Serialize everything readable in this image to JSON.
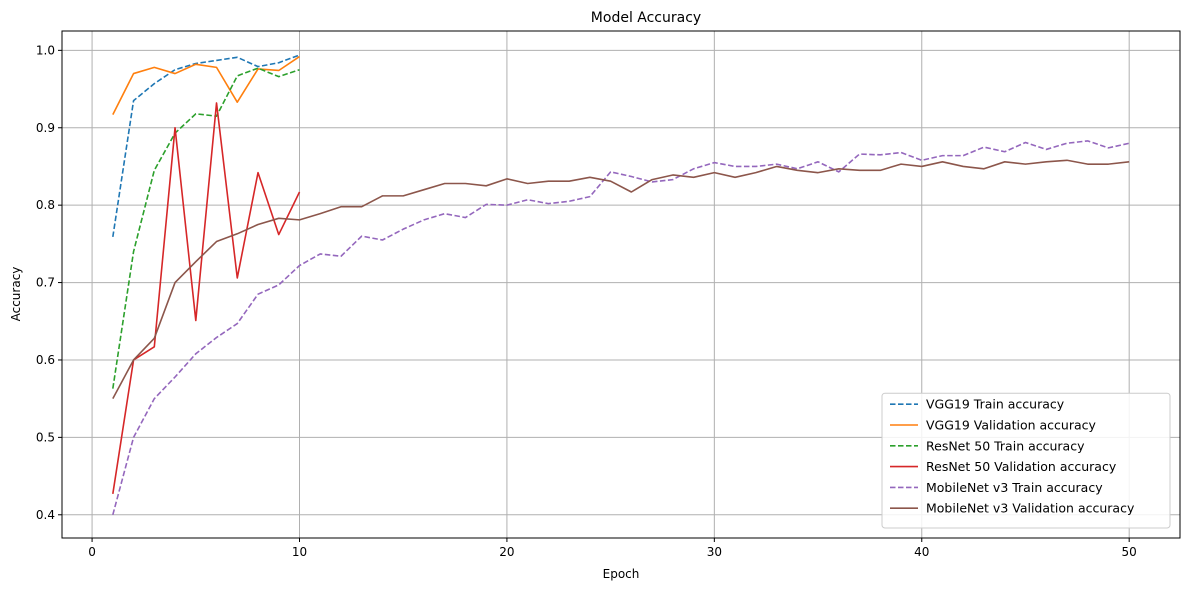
{
  "chart_data": {
    "type": "line",
    "title": "Model Accuracy",
    "xlabel": "Epoch",
    "ylabel": "Accuracy",
    "xlim": [
      -1.45,
      52.45
    ],
    "ylim": [
      0.37,
      1.025
    ],
    "xticks": [
      0,
      10,
      20,
      30,
      40,
      50
    ],
    "yticks": [
      0.4,
      0.5,
      0.6,
      0.7,
      0.8,
      0.9,
      1.0
    ],
    "ytick_labels": [
      "0.4",
      "0.5",
      "0.6",
      "0.7",
      "0.8",
      "0.9",
      "1.0"
    ],
    "grid": true,
    "legend_position": "lower-right",
    "series": [
      {
        "name": "VGG19 Train accuracy",
        "color": "#1f77b4",
        "dash": true,
        "x": [
          1,
          2,
          3,
          4,
          5,
          6,
          7,
          8,
          9,
          10
        ],
        "values": [
          0.759,
          0.935,
          0.957,
          0.975,
          0.983,
          0.987,
          0.991,
          0.979,
          0.984,
          0.994
        ]
      },
      {
        "name": "VGG19 Validation accuracy",
        "color": "#ff7f0e",
        "dash": false,
        "x": [
          1,
          2,
          3,
          4,
          5,
          6,
          7,
          8,
          9,
          10
        ],
        "values": [
          0.917,
          0.97,
          0.978,
          0.97,
          0.982,
          0.978,
          0.933,
          0.976,
          0.974,
          0.992
        ]
      },
      {
        "name": "ResNet 50 Train accuracy",
        "color": "#2ca02c",
        "dash": true,
        "x": [
          1,
          2,
          3,
          4,
          5,
          6,
          7,
          8,
          9,
          10
        ],
        "values": [
          0.563,
          0.74,
          0.845,
          0.893,
          0.918,
          0.915,
          0.967,
          0.977,
          0.966,
          0.975
        ]
      },
      {
        "name": "ResNet 50 Validation accuracy",
        "color": "#d62728",
        "dash": false,
        "x": [
          1,
          2,
          3,
          4,
          5,
          6,
          7,
          8,
          9,
          10
        ],
        "values": [
          0.427,
          0.6,
          0.617,
          0.9,
          0.651,
          0.932,
          0.706,
          0.842,
          0.762,
          0.817
        ]
      },
      {
        "name": "MobileNet v3 Train accuracy",
        "color": "#9467bd",
        "dash": true,
        "x": [
          1,
          2,
          3,
          4,
          5,
          6,
          7,
          8,
          9,
          10,
          11,
          12,
          13,
          14,
          15,
          16,
          17,
          18,
          19,
          20,
          21,
          22,
          23,
          24,
          25,
          26,
          27,
          28,
          29,
          30,
          31,
          32,
          33,
          34,
          35,
          36,
          37,
          38,
          39,
          40,
          41,
          42,
          43,
          44,
          45,
          46,
          47,
          48,
          49,
          50
        ],
        "values": [
          0.4,
          0.5,
          0.55,
          0.578,
          0.608,
          0.629,
          0.647,
          0.685,
          0.697,
          0.722,
          0.737,
          0.734,
          0.76,
          0.755,
          0.769,
          0.781,
          0.789,
          0.784,
          0.801,
          0.8,
          0.807,
          0.802,
          0.805,
          0.811,
          0.843,
          0.837,
          0.83,
          0.833,
          0.847,
          0.855,
          0.85,
          0.85,
          0.853,
          0.847,
          0.856,
          0.843,
          0.866,
          0.865,
          0.868,
          0.858,
          0.864,
          0.864,
          0.875,
          0.869,
          0.881,
          0.872,
          0.88,
          0.883,
          0.874,
          0.88
        ]
      },
      {
        "name": "MobileNet v3 Validation accuracy",
        "color": "#8c564b",
        "dash": false,
        "x": [
          1,
          2,
          3,
          4,
          5,
          6,
          7,
          8,
          9,
          10,
          11,
          12,
          13,
          14,
          15,
          16,
          17,
          18,
          19,
          20,
          21,
          22,
          23,
          24,
          25,
          26,
          27,
          28,
          29,
          30,
          31,
          32,
          33,
          34,
          35,
          36,
          37,
          38,
          39,
          40,
          41,
          42,
          43,
          44,
          45,
          46,
          47,
          48,
          49,
          50
        ],
        "values": [
          0.55,
          0.6,
          0.628,
          0.7,
          0.727,
          0.753,
          0.763,
          0.775,
          0.783,
          0.781,
          0.789,
          0.798,
          0.798,
          0.812,
          0.812,
          0.82,
          0.828,
          0.828,
          0.825,
          0.834,
          0.828,
          0.831,
          0.831,
          0.836,
          0.831,
          0.817,
          0.833,
          0.839,
          0.836,
          0.842,
          0.836,
          0.842,
          0.85,
          0.845,
          0.842,
          0.847,
          0.845,
          0.845,
          0.853,
          0.85,
          0.856,
          0.85,
          0.847,
          0.856,
          0.853,
          0.856,
          0.858,
          0.853,
          0.853,
          0.856
        ]
      }
    ]
  }
}
